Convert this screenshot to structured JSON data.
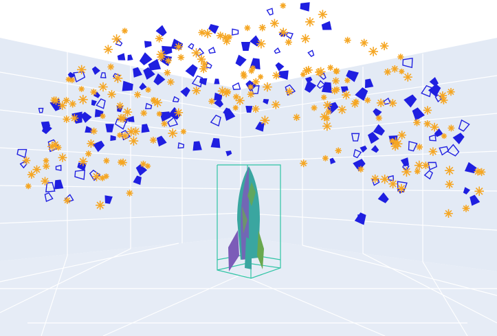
{
  "scene": {
    "description_visible_text": "",
    "colors": {
      "background_wall": "#e3eaf5",
      "grid_line": "#ffffff",
      "camera_blue": "#1f1fe0",
      "sample_orange": "#f5a623",
      "bbox_teal": "#2ec4a4",
      "rocket_purple": "#7c5cb8",
      "rocket_teal": "#3aa6a0",
      "rocket_green": "#6aa84f"
    },
    "object": {
      "name": "rocket"
    },
    "camera_count_approx": 150,
    "sample_count_approx": 190,
    "legend": null
  }
}
